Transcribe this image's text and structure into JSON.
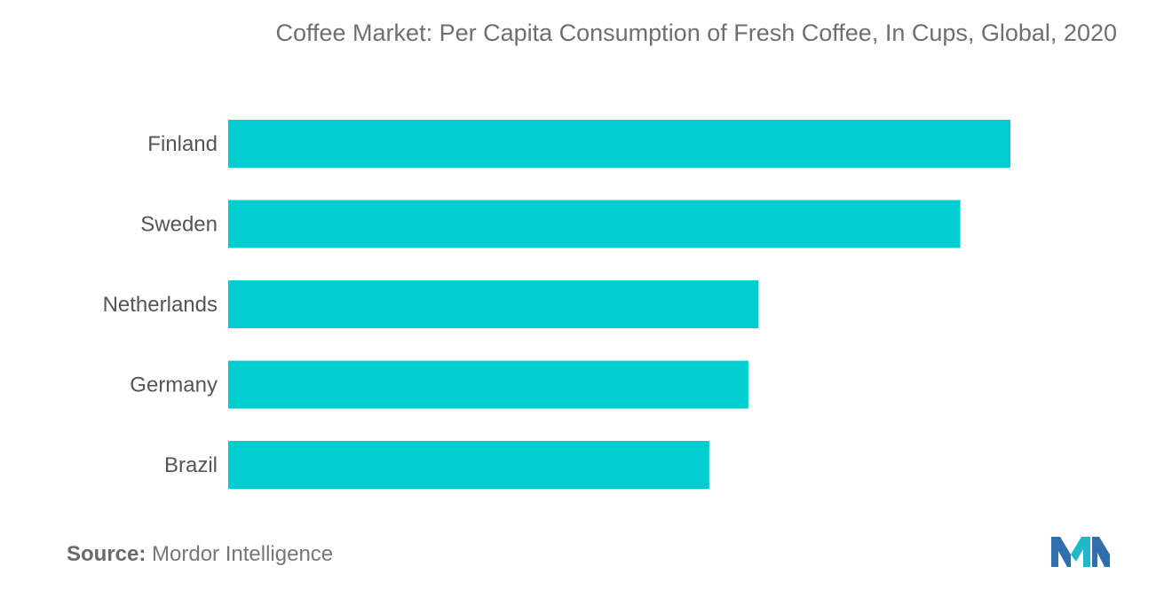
{
  "title": "Coffee Market:  Per Capita Consumption of Fresh Coffee, In Cups, Global, 2020",
  "chart_data": {
    "type": "bar",
    "orientation": "horizontal",
    "title": "Coffee Market:  Per Capita Consumption of Fresh Coffee, In Cups, Global, 2020",
    "categories": [
      "Finland",
      "Sweden",
      "Netherlands",
      "Germany",
      "Brazil"
    ],
    "values": [
      1000,
      936,
      678,
      665,
      615
    ],
    "xlabel": "",
    "ylabel": "",
    "bar_color": "#00cdd0",
    "grid": false,
    "legend": "none"
  },
  "source": {
    "label": "Source:",
    "text": "Mordor Intelligence"
  },
  "logo": {
    "icon": "mordor-intelligence-logo",
    "colors": [
      "#2f6fb0",
      "#1fb8c6"
    ]
  }
}
